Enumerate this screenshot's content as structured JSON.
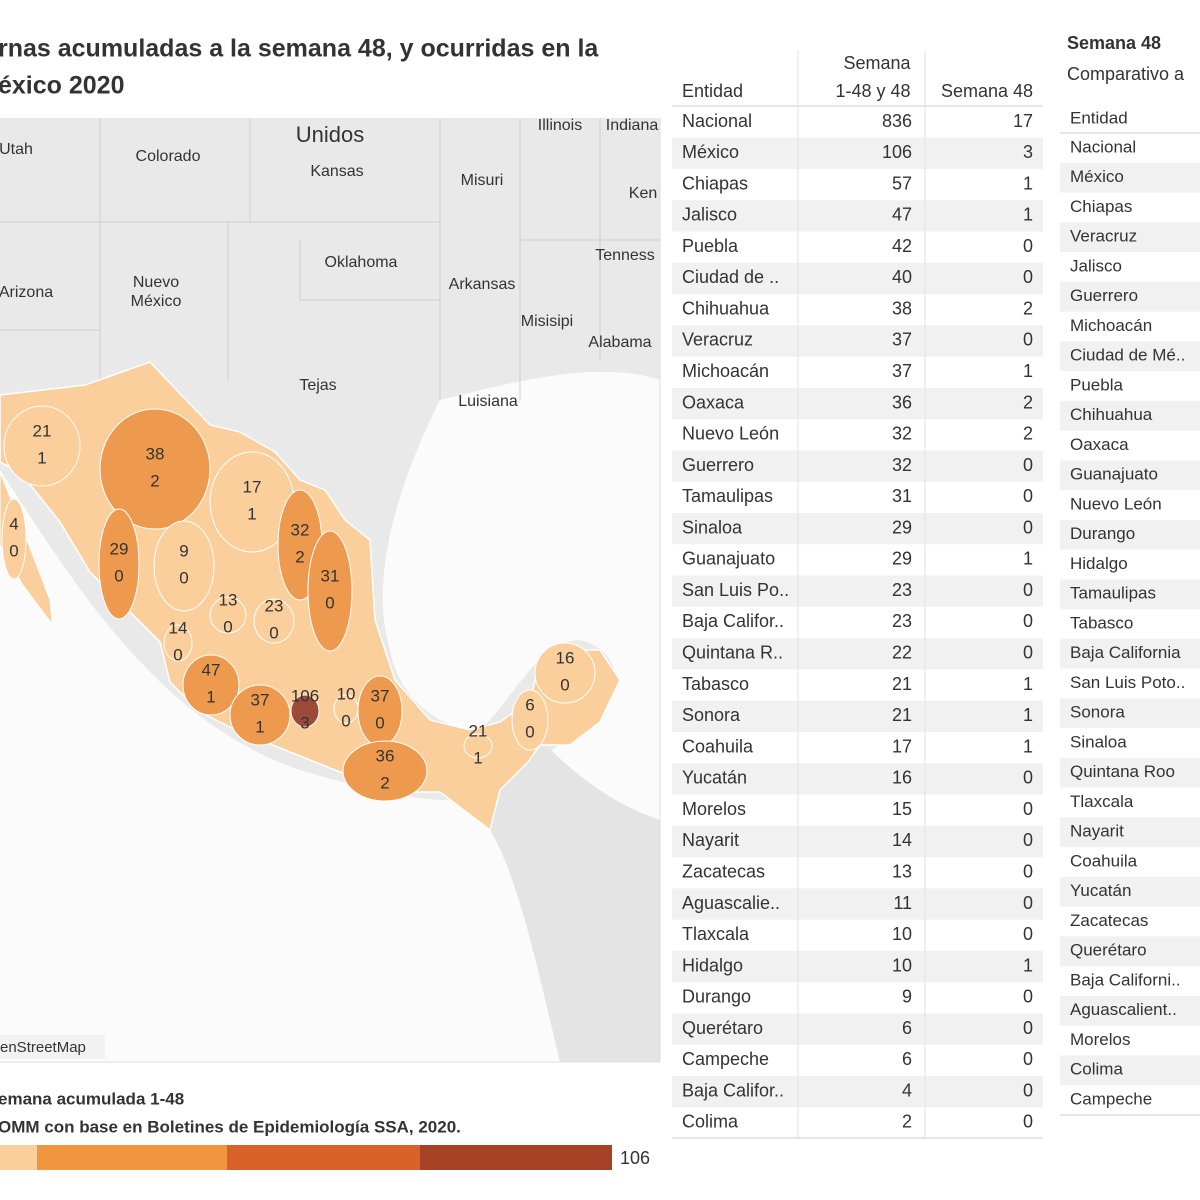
{
  "header": {
    "title_lines": [
      "rnas acumuladas a la semana 48, y ocurridas en la",
      "éxico 2020"
    ]
  },
  "map": {
    "places": [
      "Unidos",
      "Illinois",
      "Indiana",
      "Utah",
      "Colorado",
      "Kansas",
      "Misuri",
      "Ken",
      "Oklahoma",
      "Arkansas",
      "Tenness",
      "Nuevo",
      "México",
      "Arizona",
      "Misisipi",
      "Alabama",
      "Tejas",
      "Luisiana"
    ],
    "state_labels": [
      {
        "total": 21,
        "week": 1
      },
      {
        "total": 38,
        "week": 2
      },
      {
        "total": 17,
        "week": 1
      },
      {
        "total": 4,
        "week": 0
      },
      {
        "total": 32,
        "week": 2
      },
      {
        "total": 29,
        "week": 0
      },
      {
        "total": 9,
        "week": 0
      },
      {
        "total": 31,
        "week": 0
      },
      {
        "total": 13,
        "week": 0
      },
      {
        "total": 23,
        "week": 0
      },
      {
        "total": 14,
        "week": 0
      },
      {
        "total": 47,
        "week": 1
      },
      {
        "total": 37,
        "week": 1
      },
      {
        "total": 106,
        "week": 3
      },
      {
        "total": 10,
        "week": 0
      },
      {
        "total": 37,
        "week": 0
      },
      {
        "total": 36,
        "week": 2
      },
      {
        "total": 21,
        "week": 1
      },
      {
        "total": 6,
        "week": 0
      },
      {
        "total": 16,
        "week": 0
      }
    ],
    "attribution": "enStreetMap"
  },
  "legend": {
    "title": "emana acumulada 1-48",
    "source": "OMM con base en Boletines de Epidemiología SSA, 2020.",
    "max": "106"
  },
  "table": {
    "headers": {
      "entity": "Entidad",
      "total_top": "Semana",
      "total_bottom": "1-48 y 48",
      "week": "Semana 48"
    },
    "rows": [
      [
        "Nacional",
        836,
        17
      ],
      [
        "México",
        106,
        3
      ],
      [
        "Chiapas",
        57,
        1
      ],
      [
        "Jalisco",
        47,
        1
      ],
      [
        "Puebla",
        42,
        0
      ],
      [
        "Ciudad de ..",
        40,
        0
      ],
      [
        "Chihuahua",
        38,
        2
      ],
      [
        "Veracruz",
        37,
        0
      ],
      [
        "Michoacán",
        37,
        1
      ],
      [
        "Oaxaca",
        36,
        2
      ],
      [
        "Nuevo León",
        32,
        2
      ],
      [
        "Guerrero",
        32,
        0
      ],
      [
        "Tamaulipas",
        31,
        0
      ],
      [
        "Sinaloa",
        29,
        0
      ],
      [
        "Guanajuato",
        29,
        1
      ],
      [
        "San Luis Po..",
        23,
        0
      ],
      [
        "Baja Califor..",
        23,
        0
      ],
      [
        "Quintana R..",
        22,
        0
      ],
      [
        "Tabasco",
        21,
        1
      ],
      [
        "Sonora",
        21,
        1
      ],
      [
        "Coahuila",
        17,
        1
      ],
      [
        "Yucatán",
        16,
        0
      ],
      [
        "Morelos",
        15,
        0
      ],
      [
        "Nayarit",
        14,
        0
      ],
      [
        "Zacatecas",
        13,
        0
      ],
      [
        "Aguascalie..",
        11,
        0
      ],
      [
        "Tlaxcala",
        10,
        0
      ],
      [
        "Hidalgo",
        10,
        1
      ],
      [
        "Durango",
        9,
        0
      ],
      [
        "Querétaro",
        6,
        0
      ],
      [
        "Campeche",
        6,
        0
      ],
      [
        "Baja Califor..",
        4,
        0
      ],
      [
        "Colima",
        2,
        0
      ]
    ]
  },
  "side": {
    "title": "Semana 48",
    "subtitle": "Comparativo a",
    "header": "Entidad",
    "rows": [
      "Nacional",
      "México",
      "Chiapas",
      "Veracruz",
      "Jalisco",
      "Guerrero",
      "Michoacán",
      "Ciudad de Mé..",
      "Puebla",
      "Chihuahua",
      "Oaxaca",
      "Guanajuato",
      "Nuevo León",
      "Durango",
      "Hidalgo",
      "Tamaulipas",
      "Tabasco",
      "Baja California",
      "San Luis Poto..",
      "Sonora",
      "Sinaloa",
      "Quintana Roo",
      "Tlaxcala",
      "Nayarit",
      "Coahuila",
      "Yucatán",
      "Zacatecas",
      "Querétaro",
      "Baja Californi..",
      "Aguascalient..",
      "Morelos",
      "Colima",
      "Campeche"
    ]
  }
}
